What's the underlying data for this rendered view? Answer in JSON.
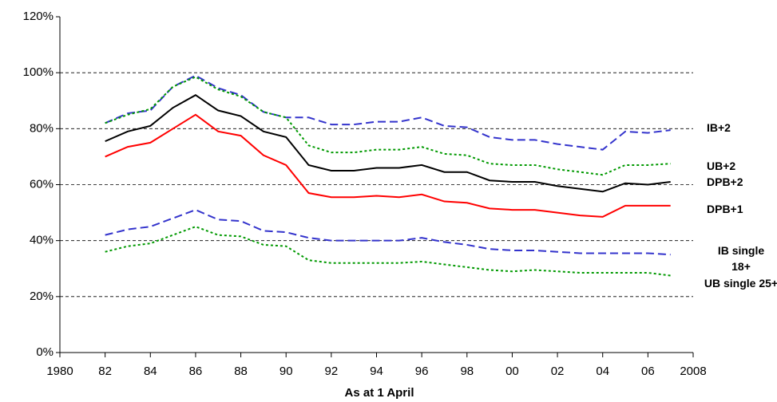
{
  "chart_data": {
    "type": "line",
    "x_label": "As at 1 April",
    "xlim": [
      1980,
      2008
    ],
    "xticks": [
      1980,
      {
        "value": 1982,
        "label": "82"
      },
      {
        "value": 1984,
        "label": "84"
      },
      {
        "value": 1986,
        "label": "86"
      },
      {
        "value": 1988,
        "label": "88"
      },
      {
        "value": 1990,
        "label": "90"
      },
      {
        "value": 1992,
        "label": "92"
      },
      {
        "value": 1994,
        "label": "94"
      },
      {
        "value": 1996,
        "label": "96"
      },
      {
        "value": 1998,
        "label": "98"
      },
      {
        "value": 2000,
        "label": "00"
      },
      {
        "value": 2002,
        "label": "02"
      },
      {
        "value": 2004,
        "label": "04"
      },
      {
        "value": 2006,
        "label": "06"
      },
      2008
    ],
    "ylim": [
      0,
      120
    ],
    "yticks": [
      {
        "value": 0,
        "label": "0%"
      },
      {
        "value": 20,
        "label": "20%"
      },
      {
        "value": 40,
        "label": "40%"
      },
      {
        "value": 60,
        "label": "60%"
      },
      {
        "value": 80,
        "label": "80%"
      },
      {
        "value": 100,
        "label": "100%"
      },
      {
        "value": 120,
        "label": "120%"
      }
    ],
    "grid": true,
    "x": [
      1982,
      1983,
      1984,
      1985,
      1986,
      1987,
      1988,
      1989,
      1990,
      1991,
      1992,
      1993,
      1994,
      1995,
      1996,
      1997,
      1998,
      1999,
      2000,
      2001,
      2002,
      2003,
      2004,
      2005,
      2006,
      2007
    ],
    "series": [
      {
        "name": "IB+2",
        "color": "#3333cc",
        "style": "dashed",
        "values": [
          82,
          85.5,
          86.5,
          95,
          99,
          94.5,
          92,
          86,
          84,
          84,
          81.5,
          81.5,
          82.5,
          82.5,
          84,
          81,
          80.5,
          77,
          76,
          76,
          74.5,
          73.5,
          72.5,
          79,
          78.5,
          79.5
        ]
      },
      {
        "name": "UB+2",
        "color": "#009900",
        "style": "dotted",
        "values": [
          82,
          85,
          87,
          95,
          98.5,
          94,
          91.5,
          86,
          84,
          74,
          71.5,
          71.5,
          72.5,
          72.5,
          73.5,
          71,
          70.5,
          67.5,
          67,
          67,
          65.5,
          64.5,
          63.5,
          67,
          67,
          67.5
        ]
      },
      {
        "name": "DPB+2",
        "color": "#000000",
        "style": "solid",
        "values": [
          75.5,
          79,
          81,
          87.5,
          92,
          86.5,
          84.5,
          79,
          77,
          67,
          65,
          65,
          66,
          66,
          67,
          64.5,
          64.5,
          61.5,
          61,
          61,
          59.5,
          58.5,
          57.5,
          60.5,
          60,
          61
        ]
      },
      {
        "name": "DPB+1",
        "color": "#ff0000",
        "style": "solid",
        "values": [
          70,
          73.5,
          75,
          80,
          85,
          79,
          77.5,
          70.5,
          67,
          57,
          55.5,
          55.5,
          56,
          55.5,
          56.5,
          54,
          53.5,
          51.5,
          51,
          51,
          50,
          49,
          48.5,
          52.5,
          52.5,
          52.5
        ]
      },
      {
        "name": "IB single 18+",
        "color": "#3333cc",
        "style": "dashed",
        "values": [
          42,
          44,
          45,
          48,
          51,
          47.5,
          47,
          43.5,
          43,
          41,
          40,
          40,
          40,
          40,
          41,
          39.5,
          38.5,
          37,
          36.5,
          36.5,
          36,
          35.5,
          35.5,
          35.5,
          35.5,
          35
        ]
      },
      {
        "name": "UB single 25+",
        "color": "#009900",
        "style": "dotted",
        "values": [
          36,
          38,
          39,
          42,
          45,
          42,
          41.5,
          38.5,
          38,
          33,
          32,
          32,
          32,
          32,
          32.5,
          31.5,
          30.5,
          29.5,
          29,
          29.5,
          29,
          28.5,
          28.5,
          28.5,
          28.5,
          27.5
        ]
      }
    ]
  }
}
